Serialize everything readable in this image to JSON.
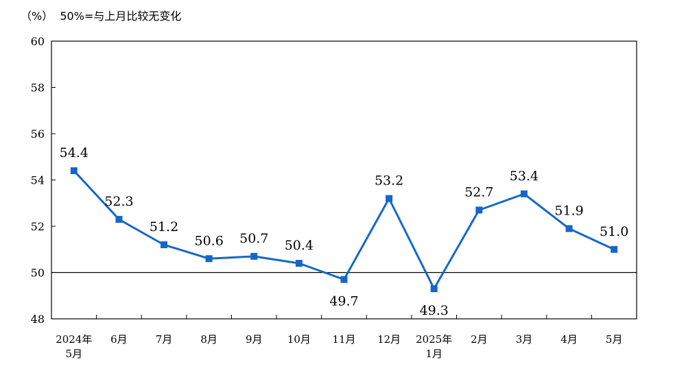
{
  "header": {
    "unit_note": "（%）  50%=与上月比较无变化"
  },
  "chart_data": {
    "type": "line",
    "ylim": [
      48,
      60
    ],
    "yticks": [
      48,
      50,
      52,
      54,
      56,
      58,
      60
    ],
    "reference_line": 50,
    "grid": false,
    "categories": [
      [
        "2024年",
        "5月"
      ],
      [
        "6月"
      ],
      [
        "7月"
      ],
      [
        "8月"
      ],
      [
        "9月"
      ],
      [
        "10月"
      ],
      [
        "11月"
      ],
      [
        "12月"
      ],
      [
        "2025年",
        "1月"
      ],
      [
        "2月"
      ],
      [
        "3月"
      ],
      [
        "4月"
      ],
      [
        "5月"
      ]
    ],
    "series": [
      {
        "values": [
          54.4,
          52.3,
          51.2,
          50.6,
          50.7,
          50.4,
          49.7,
          53.2,
          49.3,
          52.7,
          53.4,
          51.9,
          51.0
        ],
        "labels": [
          "54.4",
          "52.3",
          "51.2",
          "50.6",
          "50.7",
          "50.4",
          "49.7",
          "53.2",
          "49.3",
          "52.7",
          "53.4",
          "51.9",
          "51.0"
        ],
        "label_pos": [
          "above",
          "above",
          "above",
          "above",
          "above",
          "above",
          "below",
          "above",
          "below",
          "above",
          "above",
          "above",
          "above"
        ]
      }
    ],
    "colors": {
      "line": "#1467c8",
      "marker": "#1467c8",
      "axis": "#000000"
    }
  }
}
